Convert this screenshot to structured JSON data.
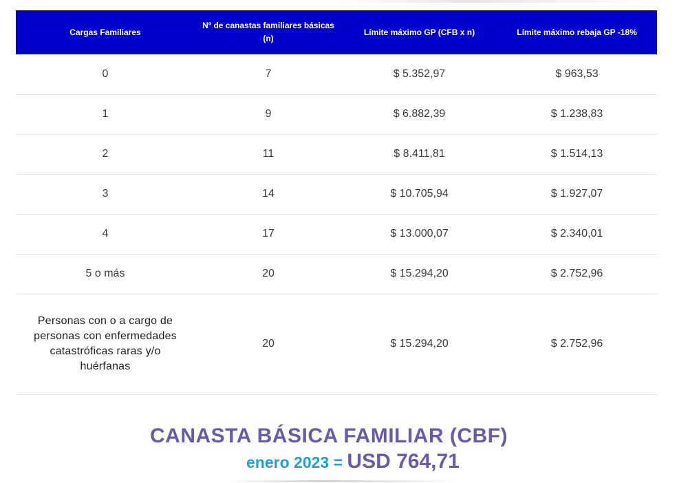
{
  "table": {
    "headers": [
      "Cargas Familiares",
      "Nº de canastas familiares básicas (n)",
      "Límite máximo GP (CFB x n)",
      "Límite máximo rebaja GP -18%"
    ],
    "rows": [
      [
        "0",
        "7",
        "$ 5.352,97",
        "$ 963,53"
      ],
      [
        "1",
        "9",
        "$ 6.882,39",
        "$ 1.238,83"
      ],
      [
        "2",
        "11",
        "$ 8.411,81",
        "$ 1.514,13"
      ],
      [
        "3",
        "14",
        "$ 10.705,94",
        "$ 1.927,07"
      ],
      [
        "4",
        "17",
        "$ 13.000,07",
        "$ 2.340,01"
      ],
      [
        "5 o más",
        "20",
        "$ 15.294,20",
        "$ 2.752,96"
      ],
      [
        "Personas con o a cargo de personas con enfermedades catastróficas raras y/o huérfanas",
        "20",
        "$ 15.294,20",
        "$ 2.752,96"
      ]
    ]
  },
  "cbf": {
    "title": "CANASTA BÁSICA FAMILIAR (CBF)",
    "month": "enero 2023 = ",
    "value": "USD 764,71"
  },
  "colors": {
    "header_bg": "#0000cc",
    "title_purple": "#6a5aa8",
    "month_blue": "#1ea0dc"
  }
}
